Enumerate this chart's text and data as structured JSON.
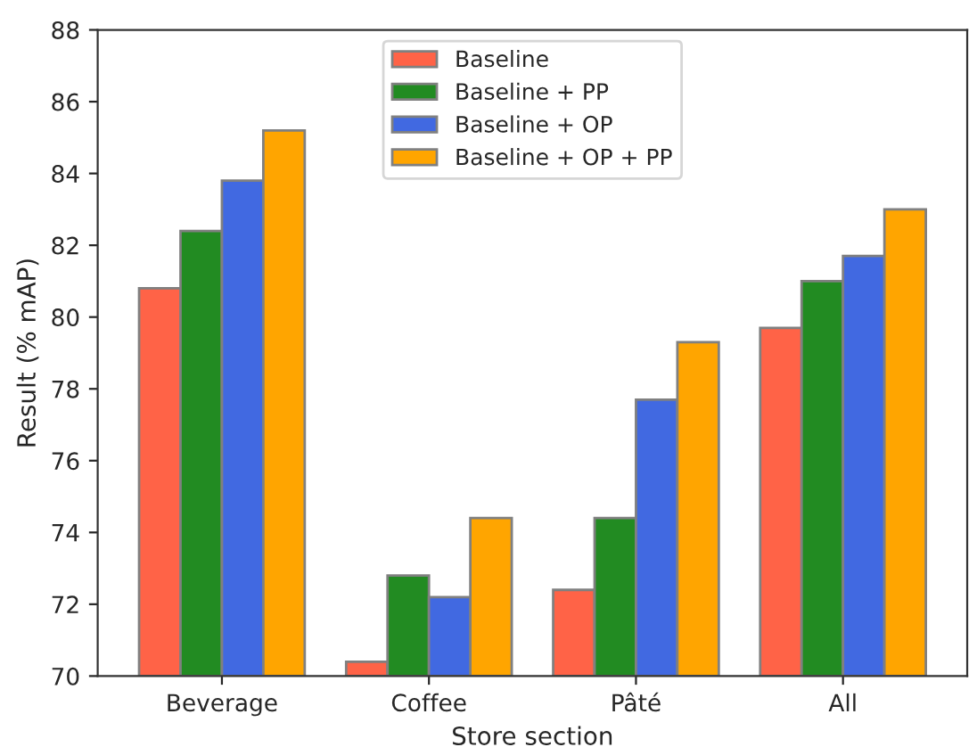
{
  "chart_data": {
    "type": "bar",
    "xlabel": "Store section",
    "ylabel": "Result (% mAP)",
    "categories": [
      "Beverage",
      "Coffee",
      "Pâté",
      "All"
    ],
    "series": [
      {
        "name": "Baseline",
        "color": "#ff6347",
        "values": [
          80.8,
          70.4,
          72.4,
          79.7
        ]
      },
      {
        "name": "Baseline + PP",
        "color": "#228b22",
        "values": [
          82.4,
          72.8,
          74.4,
          81.0
        ]
      },
      {
        "name": "Baseline + OP",
        "color": "#4169e1",
        "values": [
          83.8,
          72.2,
          77.7,
          81.7
        ]
      },
      {
        "name": "Baseline + OP + PP",
        "color": "#ffa500",
        "values": [
          85.2,
          74.4,
          79.3,
          83.0
        ]
      }
    ],
    "ylim": [
      70,
      88
    ],
    "yticks": [
      70,
      72,
      74,
      76,
      78,
      80,
      82,
      84,
      86,
      88
    ],
    "grid": false,
    "legend": "top"
  }
}
